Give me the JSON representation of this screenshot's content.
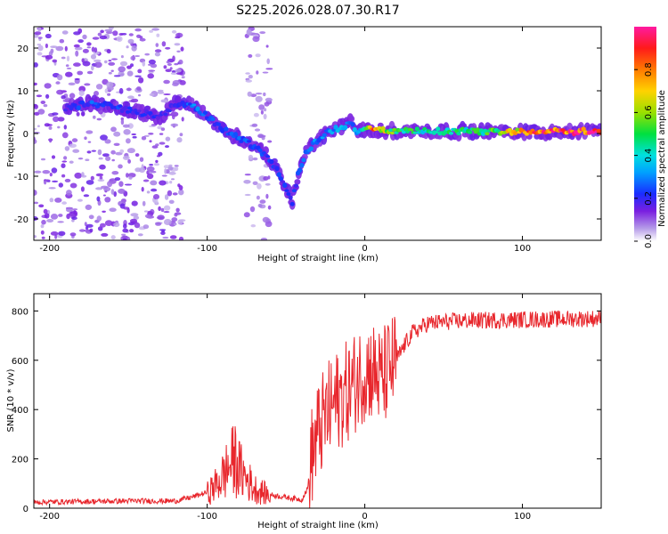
{
  "title": "S225.2026.028.07.30.R17",
  "colors": {
    "snr_line": "#e8262c",
    "spec_low": "#c9b3f2",
    "spec_mid": "#6a10d8",
    "spec_hot": "#ff1a1a",
    "axes": "#000000",
    "background": "#ffffff"
  },
  "chart_data": [
    {
      "type": "heatmap",
      "title": "S225.2026.028.07.30.R17",
      "xlabel": "Height of straight line (km)",
      "ylabel": "Frequency (Hz)",
      "xlim": [
        -210,
        150
      ],
      "ylim": [
        -25,
        25
      ],
      "xticks": [
        -200,
        -100,
        0,
        100
      ],
      "yticks": [
        -20,
        -10,
        0,
        10,
        20
      ],
      "colorbar": {
        "label": "Normalized spectral amplitude",
        "range": [
          0,
          1
        ],
        "ticks": [
          0.0,
          0.2,
          0.4,
          0.6,
          0.8
        ],
        "colormap": "rainbow"
      },
      "ridge": {
        "name": "frequency ridge",
        "x": [
          -190,
          -175,
          -160,
          -145,
          -130,
          -120,
          -110,
          -100,
          -90,
          -80,
          -70,
          -60,
          -55,
          -50,
          -46,
          -42,
          -38,
          -32,
          -25,
          -18,
          -12,
          -8,
          -5,
          0,
          5,
          20,
          50,
          80,
          100,
          150
        ],
        "y": [
          6,
          7,
          6.5,
          5,
          4,
          7,
          6.5,
          4,
          1,
          -1,
          -3,
          -6,
          -9,
          -13,
          -16,
          -9,
          -5,
          -2,
          0,
          1,
          2,
          3,
          0,
          1,
          1,
          0.5,
          0.5,
          0.5,
          0.5,
          0.5
        ],
        "amplitude": [
          0.2,
          0.25,
          0.25,
          0.2,
          0.2,
          0.2,
          0.3,
          0.25,
          0.25,
          0.25,
          0.25,
          0.22,
          0.22,
          0.22,
          0.25,
          0.25,
          0.28,
          0.3,
          0.3,
          0.35,
          0.3,
          0.3,
          0.35,
          0.45,
          0.8,
          0.5,
          0.45,
          0.5,
          0.8,
          1.0
        ]
      },
      "noise_regions": [
        {
          "x": [
            -210,
            -115
          ],
          "y": [
            -25,
            25
          ],
          "level": "scattered low-amplitude"
        },
        {
          "x": [
            -75,
            -60
          ],
          "y": [
            -25,
            25
          ],
          "level": "sparse low-amplitude"
        }
      ]
    },
    {
      "type": "line",
      "title": "",
      "xlabel": "Height of straight line (km)",
      "ylabel": "SNR (10 * v/v)",
      "xlim": [
        -210,
        150
      ],
      "ylim": [
        0,
        870
      ],
      "xticks": [
        -200,
        -100,
        0,
        100
      ],
      "yticks": [
        0,
        200,
        400,
        600,
        800
      ],
      "series": [
        {
          "name": "SNR",
          "x": [
            -210,
            -150,
            -120,
            -110,
            -100,
            -95,
            -90,
            -85,
            -82,
            -80,
            -75,
            -70,
            -60,
            -50,
            -40,
            -36,
            -34,
            -30,
            -25,
            -20,
            -15,
            -10,
            -5,
            0,
            5,
            10,
            15,
            20,
            25,
            30,
            40,
            60,
            100,
            150
          ],
          "y": [
            20,
            25,
            25,
            40,
            60,
            90,
            130,
            180,
            200,
            160,
            120,
            80,
            50,
            40,
            30,
            80,
            200,
            300,
            370,
            420,
            450,
            480,
            520,
            560,
            560,
            520,
            560,
            600,
            660,
            710,
            750,
            760,
            765,
            770
          ],
          "spike_range": [
            40,
            620
          ]
        }
      ]
    }
  ]
}
